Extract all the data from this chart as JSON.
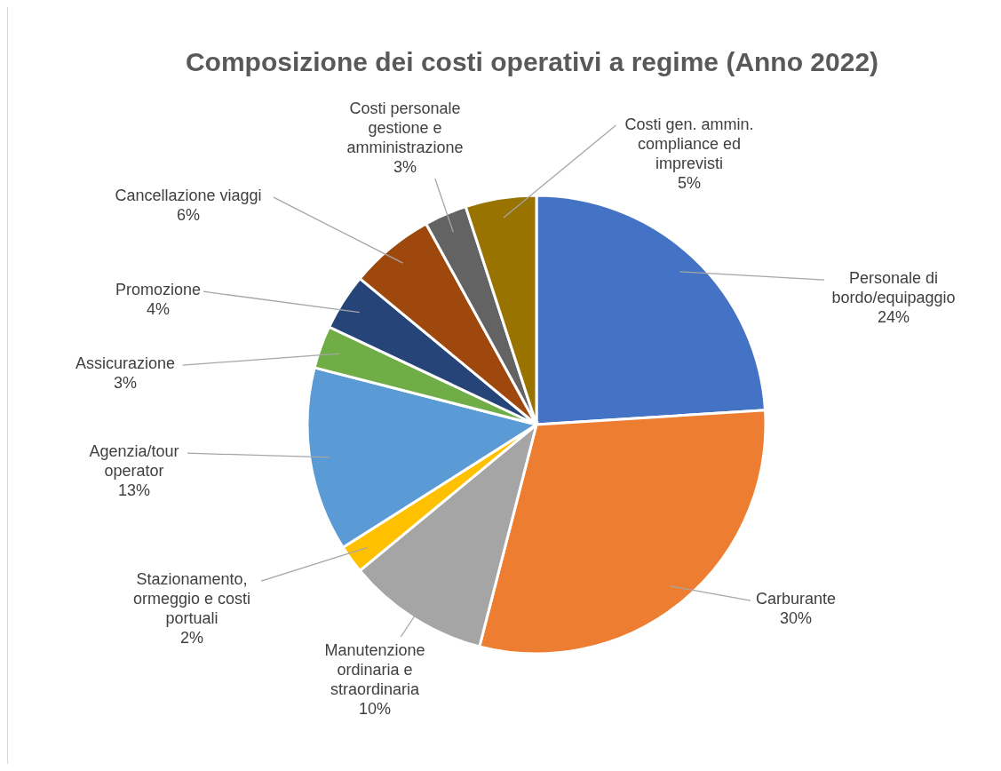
{
  "chart_data": {
    "type": "pie",
    "title": "Composizione dei costi operativi a regime (Anno 2022)",
    "categories": [
      "Personale di bordo/equipaggio",
      "Carburante",
      "Manutenzione ordinaria e straordinaria",
      "Stazionamento, ormeggio e costi portuali",
      "Agenzia/tour operator",
      "Assicurazione",
      "Promozione",
      "Cancellazione viaggi",
      "Costi personale gestione e amministrazione",
      "Costi gen. ammin. compliance ed imprevisti"
    ],
    "values": [
      24,
      30,
      10,
      2,
      13,
      3,
      4,
      6,
      3,
      5
    ],
    "value_labels": [
      "24%",
      "30%",
      "10%",
      "2%",
      "13%",
      "3%",
      "4%",
      "6%",
      "3%",
      "5%"
    ],
    "colors": [
      "#4472c4",
      "#ed7d31",
      "#a5a5a5",
      "#ffc000",
      "#5b9bd5",
      "#70ad47",
      "#264478",
      "#9e480e",
      "#636363",
      "#997300"
    ],
    "legend": false
  }
}
